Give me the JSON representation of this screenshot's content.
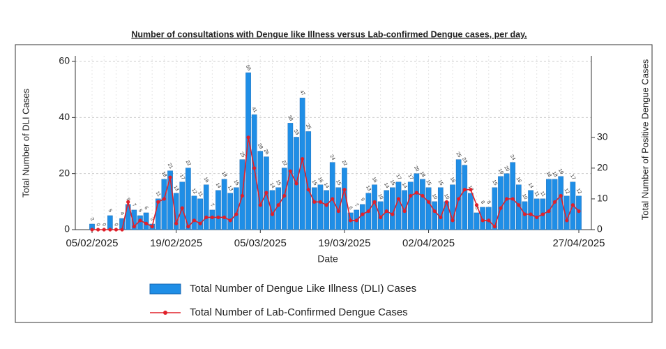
{
  "chart_data": {
    "type": "bar_line",
    "title": "Number of consultations with Dengue like Illness versus Lab-confirmed Dengue cases, per day.",
    "x_label": "Date",
    "y_label": "Total Number of DLI Cases",
    "y2_label": "Total Number of Positive Dengue Cases",
    "x": [
      "05/02/2025",
      "06/02/2025",
      "07/02/2025",
      "08/02/2025",
      "09/02/2025",
      "10/02/2025",
      "11/02/2025",
      "12/02/2025",
      "13/02/2025",
      "14/02/2025",
      "15/02/2025",
      "16/02/2025",
      "17/02/2025",
      "18/02/2025",
      "19/02/2025",
      "20/02/2025",
      "21/02/2025",
      "22/02/2025",
      "23/02/2025",
      "24/02/2025",
      "25/02/2025",
      "26/02/2025",
      "27/02/2025",
      "28/02/2025",
      "01/03/2025",
      "02/03/2025",
      "03/03/2025",
      "04/03/2025",
      "05/03/2025",
      "06/03/2025",
      "07/03/2025",
      "08/03/2025",
      "09/03/2025",
      "10/03/2025",
      "11/03/2025",
      "12/03/2025",
      "13/03/2025",
      "14/03/2025",
      "15/03/2025",
      "16/03/2025",
      "17/03/2025",
      "18/03/2025",
      "19/03/2025",
      "20/03/2025",
      "21/03/2025",
      "22/03/2025",
      "23/03/2025",
      "24/03/2025",
      "25/03/2025",
      "26/03/2025",
      "27/03/2025",
      "28/03/2025",
      "29/03/2025",
      "30/03/2025",
      "31/03/2025",
      "01/04/2025",
      "02/04/2025",
      "03/04/2025",
      "04/04/2025",
      "05/04/2025",
      "06/04/2025",
      "07/04/2025",
      "08/04/2025",
      "09/04/2025",
      "10/04/2025",
      "11/04/2025",
      "12/04/2025",
      "13/04/2025",
      "14/04/2025",
      "15/04/2025",
      "16/04/2025",
      "17/04/2025",
      "18/04/2025",
      "19/04/2025",
      "20/04/2025",
      "21/04/2025",
      "22/04/2025",
      "23/04/2025",
      "24/04/2025",
      "25/04/2025",
      "26/04/2025",
      "27/04/2025"
    ],
    "xticks": [
      "05/02/2025",
      "19/02/2025",
      "05/03/2025",
      "19/03/2025",
      "02/04/2025",
      "27/04/2025"
    ],
    "series": [
      {
        "name": "Total Number of Dengue Like Illness (DLI) Cases",
        "type": "bar",
        "color": "#1f8ee6",
        "values": [
          2,
          0,
          0,
          5,
          0,
          4,
          9,
          7,
          5,
          6,
          2,
          11,
          18,
          21,
          13,
          17,
          22,
          12,
          11,
          16,
          7,
          14,
          18,
          13,
          15,
          25,
          56,
          41,
          28,
          26,
          14,
          15,
          22,
          38,
          33,
          47,
          35,
          15,
          16,
          14,
          24,
          15,
          22,
          6,
          7,
          9,
          13,
          16,
          10,
          14,
          15,
          17,
          14,
          17,
          20,
          18,
          15,
          10,
          15,
          10,
          16,
          25,
          23,
          13,
          6,
          8,
          8,
          15,
          19,
          20,
          24,
          16,
          10,
          14,
          11,
          11,
          18,
          18,
          19,
          12,
          17,
          12
        ]
      },
      {
        "name": "Total Number of Lab-Confirmed Dengue Cases",
        "type": "line",
        "color": "#e0202a",
        "axis": "y2",
        "values": [
          0,
          0,
          0,
          0,
          0,
          0,
          9,
          1,
          3,
          2,
          1,
          9,
          10,
          17,
          2,
          7,
          1,
          3,
          2,
          4,
          4,
          4,
          4,
          3,
          5,
          11,
          30,
          20,
          8,
          12,
          5,
          8,
          11,
          19,
          15,
          23,
          13,
          9,
          9,
          8,
          10,
          6,
          13,
          3,
          3,
          5,
          6,
          9,
          4,
          6,
          5,
          10,
          6,
          11,
          12,
          11,
          9,
          6,
          4,
          9,
          3,
          10,
          13,
          13,
          8,
          3,
          3,
          1,
          7,
          10,
          10,
          8,
          5,
          5,
          4,
          5,
          6,
          9,
          11,
          3,
          8,
          6
        ]
      }
    ],
    "ylim": [
      0,
      62
    ],
    "yticks": [
      0,
      20,
      40,
      60
    ],
    "y2lim": [
      0,
      56.5
    ],
    "y2ticks": [
      0,
      10,
      20,
      30
    ]
  }
}
